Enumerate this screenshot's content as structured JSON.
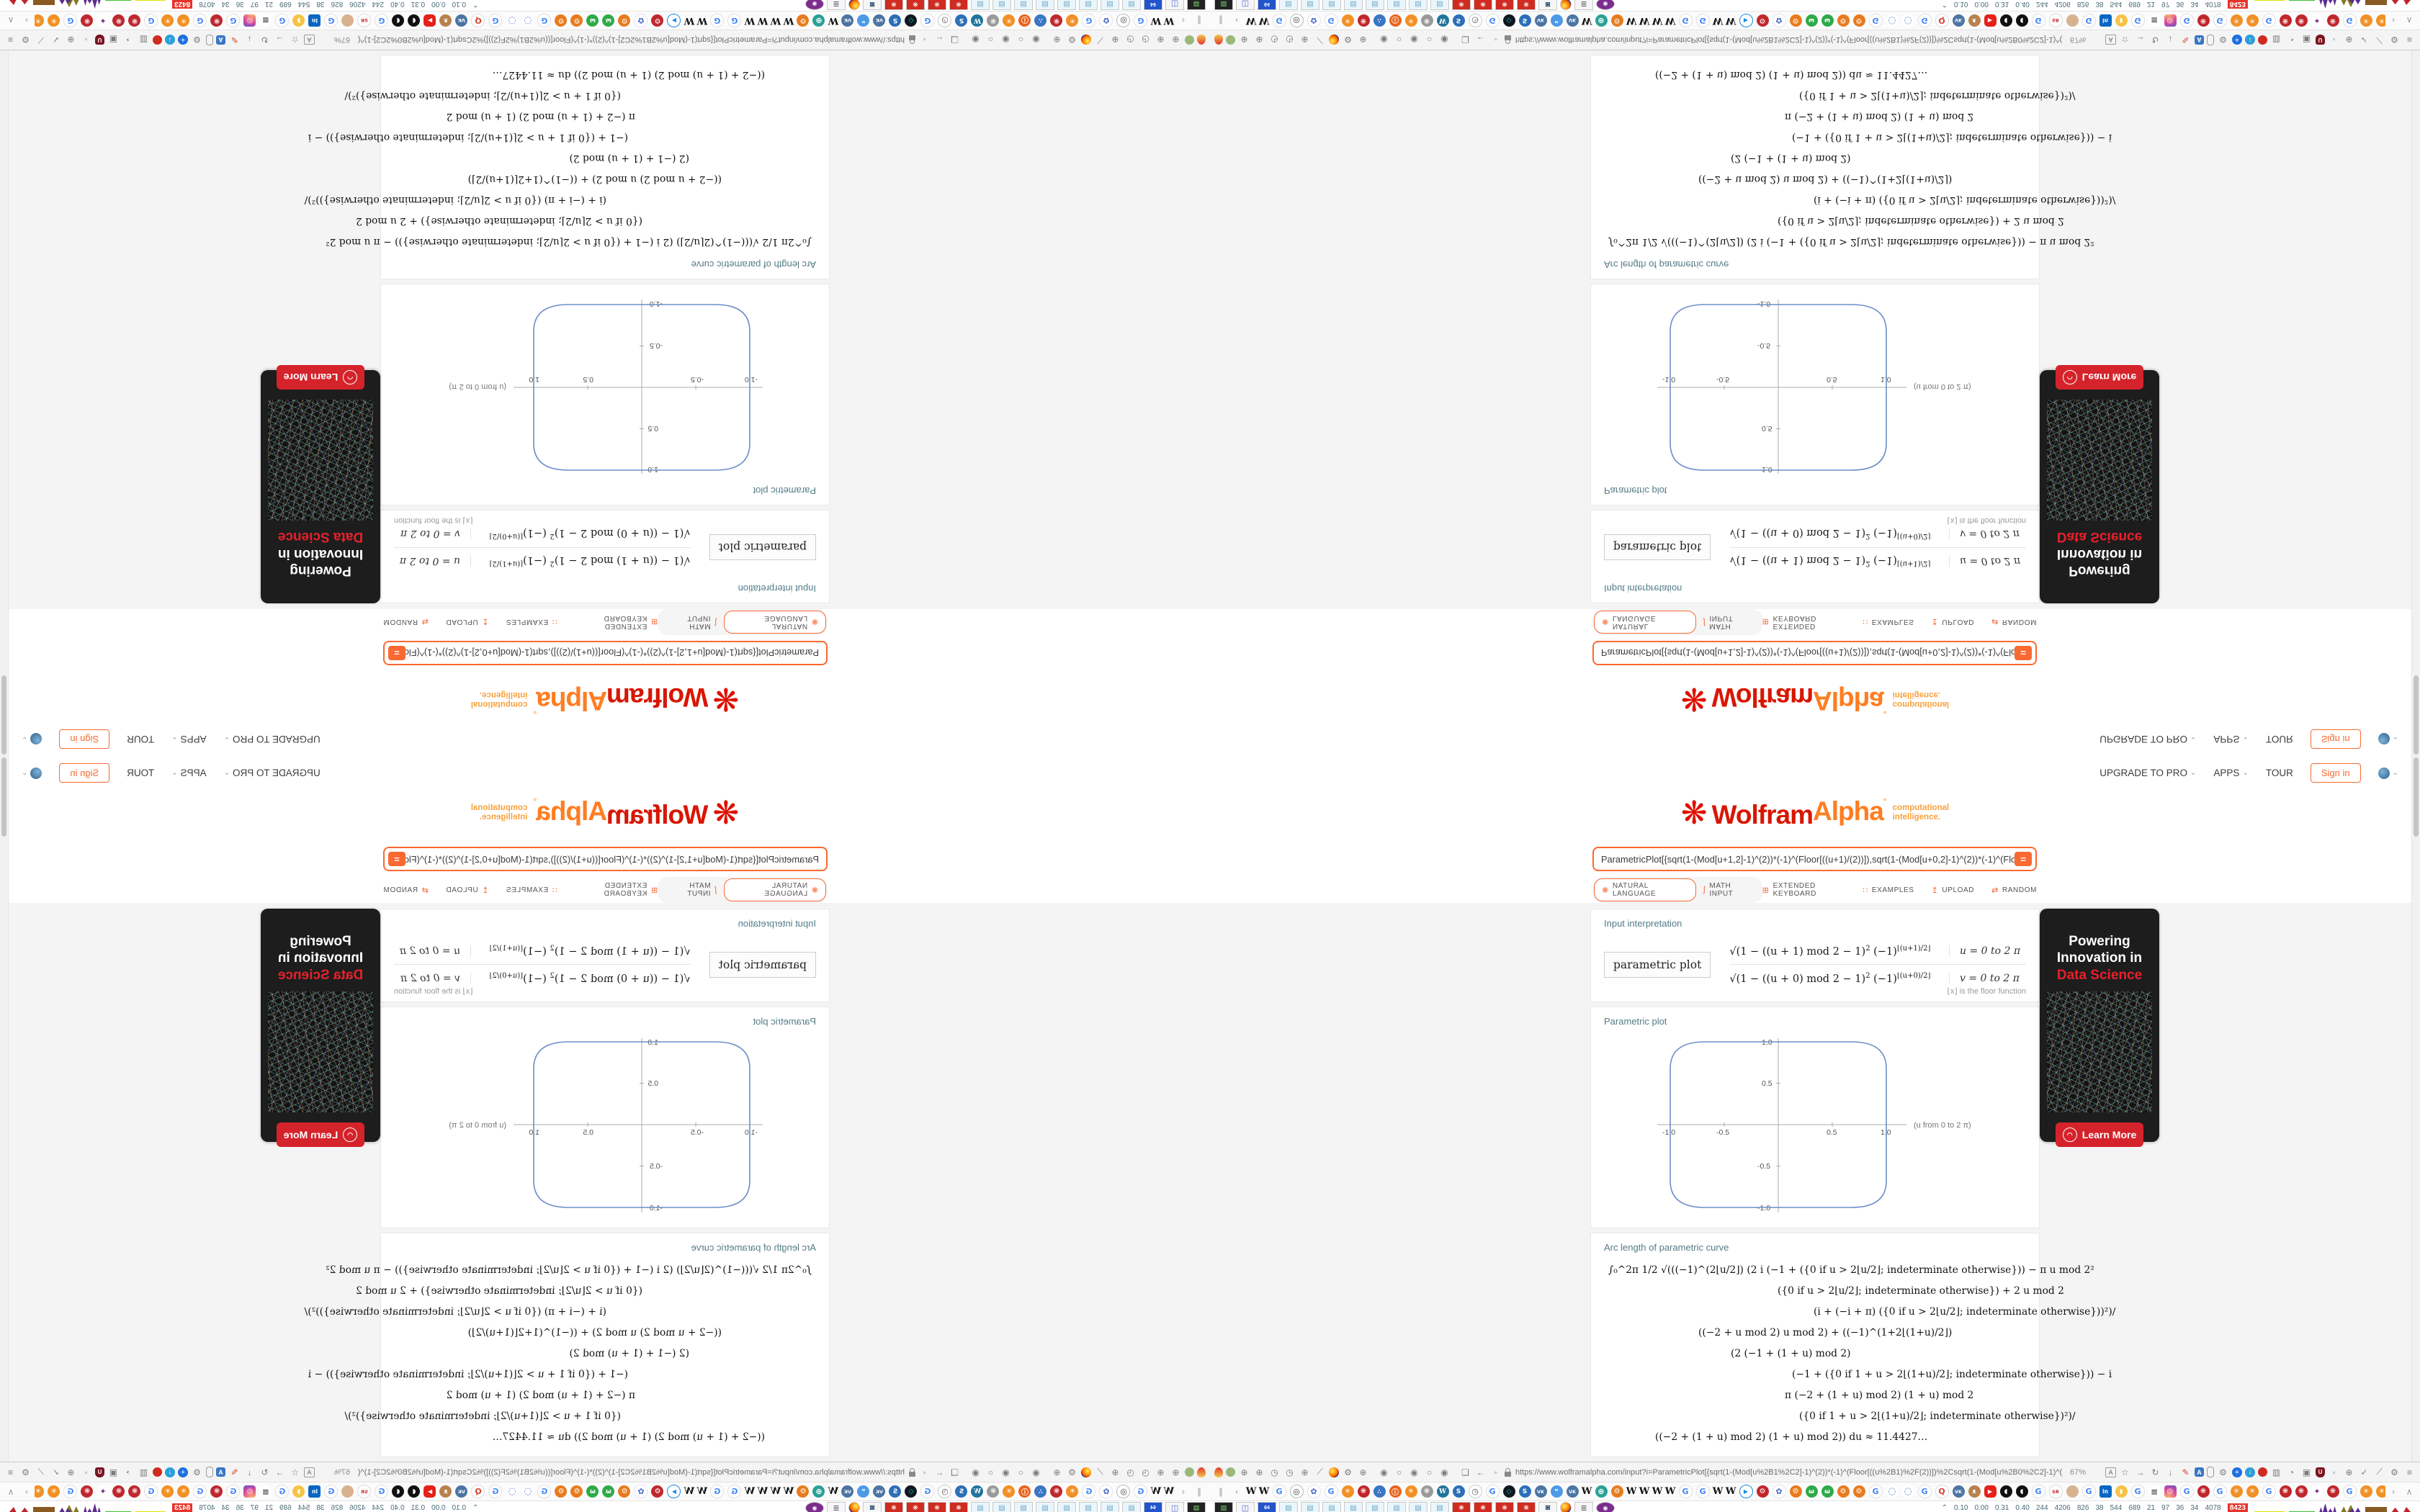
{
  "colors": {
    "accent": "#f96932",
    "wolfram_red": "#d81600",
    "alpha_orange": "#ff7d21",
    "pod_title": "#537b87",
    "plot_blue": "#6b8fc9",
    "ad_red": "#e8202a",
    "highlight_red": "#e8332a"
  },
  "page": {
    "nav": {
      "upgrade": "UPGRADE TO PRO",
      "apps": "APPS",
      "tour": "TOUR",
      "signin": "Sign in"
    },
    "logo": {
      "spikey": "❋",
      "wolfram": "Wolfram",
      "alpha": "Alpha",
      "sup": "°",
      "tagline1": "computational",
      "tagline2": "intelligence."
    },
    "query": "ParametricPlot[{sqrt(1-(Mod[u+1,2]-1)^(2))*(-1)^(Floor[((u+1)/(2))]),sqrt(1-(Mod[u+0,2]-1)^(2))*(-1)^(Floo",
    "eq_button": "=",
    "modes": {
      "natural": "NATURAL LANGUAGE",
      "math": "MATH INPUT",
      "keyboard": "EXTENDED KEYBOARD",
      "examples": "EXAMPLES",
      "upload": "UPLOAD",
      "random": "RANDOM"
    },
    "pods": {
      "interpretation": {
        "title": "Input interpretation",
        "label": "parametric plot",
        "row1_a": "√(1 − ((u + 1) mod 2 − 1)",
        "row1_b": "2",
        "row1_c": " (−1)",
        "row1_d": "⌊(u+1)/2⌋",
        "row1_range": "u = 0 to 2 π",
        "row2_a": "√(1 − ((u + 0) mod 2 − 1)",
        "row2_b": "2",
        "row2_c": " (−1)",
        "row2_d": "⌊(u+0)/2⌋",
        "row2_range": "v = 0 to 2 π",
        "floor_note": "⌊x⌋ is the floor function"
      },
      "plot": {
        "title": "Parametric plot",
        "axis_note": "(u from 0 to 2 π)"
      },
      "arc": {
        "title": "Arc length of parametric curve",
        "lines": [
          "∫₀^2π 1/2 √(((−1)^(2⌊u/2⌋) (2 i (−1 + ({0 if u > 2⌊u/2⌋; indeterminate otherwise})) − π u mod 2²",
          "({0 if u > 2⌊u/2⌋; indeterminate otherwise}) + 2 u mod 2",
          "(i + (−i + π) ({0 if u > 2⌊u/2⌋; indeterminate otherwise}))²)∕",
          "((−2 + u mod 2) u mod 2) + ((−1)^(1+2⌊(1+u)/2⌋)",
          "(2 (−1 + (1 + u) mod 2)",
          "(−1 + ({0 if 1 + u > 2⌊(1+u)/2⌋; indeterminate otherwise})) − i",
          "π (−2 + (1 + u) mod 2) (1 + u) mod 2",
          "({0 if 1 + u > 2⌊(1+u)/2⌋; indeterminate otherwise})²)∕",
          "((−2 + (1 + u) mod 2) (1 + u) mod 2)) du ≈ 11.4427…"
        ]
      }
    },
    "ad": {
      "line1": "Powering",
      "line2": "Innovation in",
      "line3": "Data Science",
      "cta": "Learn More"
    }
  },
  "chart_data": {
    "type": "line",
    "title": "Parametric plot",
    "x_expr": "x(u) = sqrt(1 - ((u+1) mod 2 - 1)^2) * (-1)^floor((u+1)/2)",
    "y_expr": "y(u) = sqrt(1 - ((u+0) mod 2 - 1)^2) * (-1)^floor((u+0)/2)",
    "u_range": [
      0,
      6.2832
    ],
    "xlim": [
      -1.1,
      1.1
    ],
    "ylim": [
      -1.1,
      1.1
    ],
    "xticks": [
      "-1.0",
      "-0.5",
      "0.5",
      "1.0"
    ],
    "yticks": [
      "1.0",
      "0.5",
      "-0.5",
      "-1.0"
    ],
    "annotation": "(u from 0 to 2 π)",
    "curve": "closed rounded-square loop through (1,0),(0,1),(-1,0),(0,-1)",
    "points": [
      [
        1,
        0
      ],
      [
        1,
        0.6
      ],
      [
        0.97,
        0.8
      ],
      [
        0.9,
        0.92
      ],
      [
        0.8,
        0.97
      ],
      [
        0.6,
        1
      ],
      [
        0,
        1
      ],
      [
        -0.6,
        1
      ],
      [
        -0.8,
        0.97
      ],
      [
        -0.9,
        0.92
      ],
      [
        -0.97,
        0.8
      ],
      [
        -1,
        0.6
      ],
      [
        -1,
        0
      ],
      [
        -1,
        -0.6
      ],
      [
        -0.97,
        -0.8
      ],
      [
        -0.9,
        -0.92
      ],
      [
        -0.8,
        -0.97
      ],
      [
        -0.6,
        -1
      ],
      [
        0,
        -1
      ],
      [
        0.6,
        -1
      ],
      [
        0.8,
        -0.97
      ],
      [
        0.9,
        -0.92
      ],
      [
        0.97,
        -0.8
      ],
      [
        1,
        -0.6
      ],
      [
        1,
        0
      ]
    ],
    "arc_length_result": "11.4427…",
    "grid": false,
    "legend": false
  },
  "chrome": {
    "toolbar": {
      "left_icons": [
        "balloon",
        "grnC",
        "globeG",
        "globeG",
        "gaugeG",
        "gaugeG",
        "globeG",
        "wrench",
        "ffx",
        "gearG",
        "globeG"
      ],
      "radios": [
        "rOn",
        "rOff",
        "rOn",
        "rOff",
        "rOn"
      ],
      "pre_url_icons": [
        "folder",
        "back",
        "shieldG",
        "lock"
      ],
      "url": "https://www.wolframalpha.com/input?i=ParametricPlot[{sqrt(1-(Mod[u%2B1%2C2]-1)^(2))*(-1)^(Floor[((u%2B1)%2F(2))])%2Csqrt(1-(Mod[u%2B0%2C2]-1)^(2))*(-1)^(Floor[((u%2B0",
      "zoom": "67%",
      "right_icons": [
        "reader",
        "star",
        "fwd",
        "reload",
        "dl",
        "marker",
        "translate",
        "mouse",
        "gearG",
        "plusB",
        "dlB",
        "redball",
        "trash",
        "pie",
        "barrel",
        "ud",
        "shieldG",
        "globeG",
        "check",
        "wrench",
        "gearG",
        "menu"
      ]
    },
    "bookmarks": {
      "left_controls": [
        "pipe",
        "lt"
      ],
      "icons": [
        "W",
        "W",
        "G",
        "target",
        "flowerB",
        "G",
        "sunO",
        "sR",
        "peopleB",
        "infoO",
        "sunO",
        "sGray",
        "wp",
        "swirlB",
        "gauge",
        "G",
        "hexB",
        "swirlB",
        "vk",
        "chat",
        "vk",
        "W",
        "globeT",
        "gearO",
        "W",
        "W",
        "W",
        "W",
        "G",
        "G",
        "W",
        "W",
        "playB",
        "gearR",
        "flowerB",
        "gearO",
        "grnW",
        "grnW",
        "gearO",
        "gearO",
        "G",
        "dotC",
        "dotC",
        "G",
        "qR",
        "vk",
        "monkey",
        "yt",
        "blkC",
        "blkC",
        "G",
        "sr",
        "person",
        "G",
        "li",
        "pac",
        "G",
        "list",
        "ig",
        "G",
        "sR",
        "G",
        "sunO",
        "sunO",
        "G",
        "sR",
        "sR",
        "swirlP",
        "sR",
        "G",
        "sunO",
        "sunO"
      ],
      "right_controls": [
        "gt",
        "up"
      ]
    },
    "taskbar": {
      "icons": [
        "drive",
        "monitor",
        "floppy",
        "note",
        "note",
        "note",
        "note",
        "note",
        "note",
        "note",
        "note",
        "redgear",
        "redgear",
        "redgear",
        "redgear",
        "cam",
        "ffx2",
        "scroll",
        "person2"
      ],
      "floppy_label": "64"
    },
    "stats": {
      "chevron": "⌃",
      "values": [
        "0.10",
        "0.00",
        "0.31",
        "0.40",
        "244",
        "4206",
        "826",
        "38",
        "544",
        "689",
        "21",
        "97",
        "36",
        "34",
        "4078"
      ],
      "highlight": "8423",
      "sparks": [
        "yline",
        "gline",
        "pspikes",
        "mspikes",
        "brown",
        "redm"
      ]
    }
  }
}
